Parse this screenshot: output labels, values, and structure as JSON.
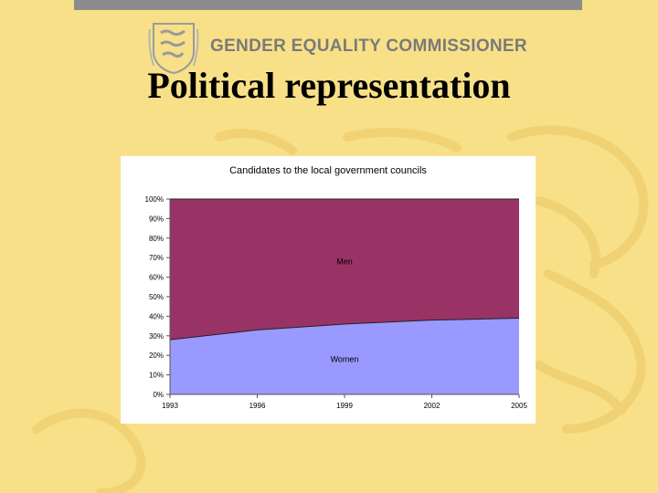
{
  "header": {
    "org_name": "GENDER EQUALITY COMMISSIONER",
    "title": "Political representation"
  },
  "colors": {
    "background": "#f8e088",
    "top_bar": "#8c8c8c",
    "men_area": "#993366",
    "women_area": "#9999ff"
  },
  "icons": {
    "crest": "three-lions-crest-icon"
  },
  "chart_data": {
    "type": "area",
    "stacked": true,
    "percent": true,
    "title": "Candidates to the local government councils",
    "x": [
      "1993",
      "1996",
      "1999",
      "2002",
      "2005"
    ],
    "series": [
      {
        "name": "Women",
        "values": [
          28,
          33,
          36,
          38,
          39
        ],
        "color": "#9999ff"
      },
      {
        "name": "Men",
        "values": [
          72,
          67,
          64,
          62,
          61
        ],
        "color": "#993366"
      }
    ],
    "ylim": [
      0,
      100
    ],
    "yticks": [
      "0%",
      "10%",
      "20%",
      "30%",
      "40%",
      "50%",
      "60%",
      "70%",
      "80%",
      "90%",
      "100%"
    ],
    "legend": "inline labels",
    "grid": false
  }
}
